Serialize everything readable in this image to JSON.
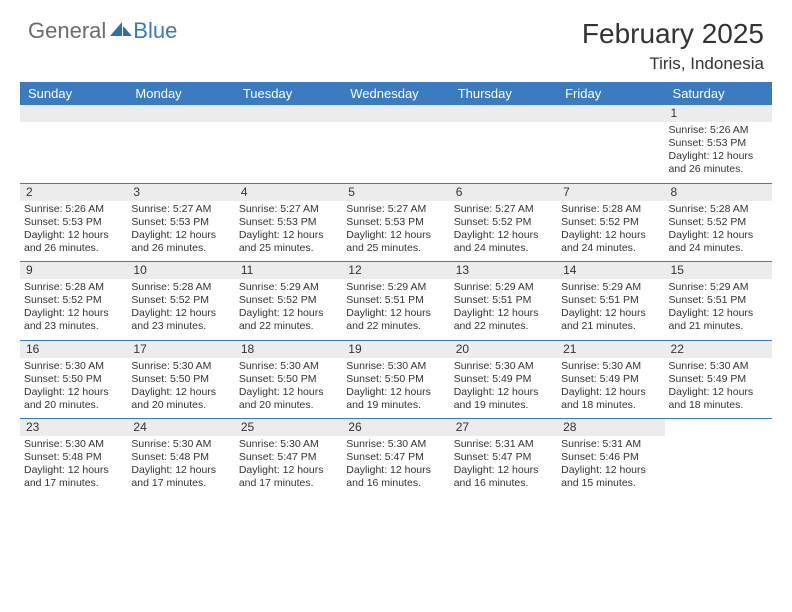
{
  "brand": {
    "general": "General",
    "blue": "Blue"
  },
  "title": "February 2025",
  "location": "Tiris, Indonesia",
  "colors": {
    "header_bg": "#3b7bbf",
    "header_text": "#ffffff",
    "daynum_bg": "#ececec",
    "border": "#3b7bbf",
    "logo_grey": "#6b6b6b",
    "logo_blue": "#3a7ab8",
    "text": "#333333",
    "background": "#ffffff"
  },
  "dayheaders": [
    "Sunday",
    "Monday",
    "Tuesday",
    "Wednesday",
    "Thursday",
    "Friday",
    "Saturday"
  ],
  "weeks": [
    [
      {
        "empty": true
      },
      {
        "empty": true
      },
      {
        "empty": true
      },
      {
        "empty": true
      },
      {
        "empty": true
      },
      {
        "empty": true
      },
      {
        "day": "1",
        "sunrise": "Sunrise: 5:26 AM",
        "sunset": "Sunset: 5:53 PM",
        "daylight1": "Daylight: 12 hours",
        "daylight2": "and 26 minutes."
      }
    ],
    [
      {
        "day": "2",
        "sunrise": "Sunrise: 5:26 AM",
        "sunset": "Sunset: 5:53 PM",
        "daylight1": "Daylight: 12 hours",
        "daylight2": "and 26 minutes."
      },
      {
        "day": "3",
        "sunrise": "Sunrise: 5:27 AM",
        "sunset": "Sunset: 5:53 PM",
        "daylight1": "Daylight: 12 hours",
        "daylight2": "and 26 minutes."
      },
      {
        "day": "4",
        "sunrise": "Sunrise: 5:27 AM",
        "sunset": "Sunset: 5:53 PM",
        "daylight1": "Daylight: 12 hours",
        "daylight2": "and 25 minutes."
      },
      {
        "day": "5",
        "sunrise": "Sunrise: 5:27 AM",
        "sunset": "Sunset: 5:53 PM",
        "daylight1": "Daylight: 12 hours",
        "daylight2": "and 25 minutes."
      },
      {
        "day": "6",
        "sunrise": "Sunrise: 5:27 AM",
        "sunset": "Sunset: 5:52 PM",
        "daylight1": "Daylight: 12 hours",
        "daylight2": "and 24 minutes."
      },
      {
        "day": "7",
        "sunrise": "Sunrise: 5:28 AM",
        "sunset": "Sunset: 5:52 PM",
        "daylight1": "Daylight: 12 hours",
        "daylight2": "and 24 minutes."
      },
      {
        "day": "8",
        "sunrise": "Sunrise: 5:28 AM",
        "sunset": "Sunset: 5:52 PM",
        "daylight1": "Daylight: 12 hours",
        "daylight2": "and 24 minutes."
      }
    ],
    [
      {
        "day": "9",
        "sunrise": "Sunrise: 5:28 AM",
        "sunset": "Sunset: 5:52 PM",
        "daylight1": "Daylight: 12 hours",
        "daylight2": "and 23 minutes."
      },
      {
        "day": "10",
        "sunrise": "Sunrise: 5:28 AM",
        "sunset": "Sunset: 5:52 PM",
        "daylight1": "Daylight: 12 hours",
        "daylight2": "and 23 minutes."
      },
      {
        "day": "11",
        "sunrise": "Sunrise: 5:29 AM",
        "sunset": "Sunset: 5:52 PM",
        "daylight1": "Daylight: 12 hours",
        "daylight2": "and 22 minutes."
      },
      {
        "day": "12",
        "sunrise": "Sunrise: 5:29 AM",
        "sunset": "Sunset: 5:51 PM",
        "daylight1": "Daylight: 12 hours",
        "daylight2": "and 22 minutes."
      },
      {
        "day": "13",
        "sunrise": "Sunrise: 5:29 AM",
        "sunset": "Sunset: 5:51 PM",
        "daylight1": "Daylight: 12 hours",
        "daylight2": "and 22 minutes."
      },
      {
        "day": "14",
        "sunrise": "Sunrise: 5:29 AM",
        "sunset": "Sunset: 5:51 PM",
        "daylight1": "Daylight: 12 hours",
        "daylight2": "and 21 minutes."
      },
      {
        "day": "15",
        "sunrise": "Sunrise: 5:29 AM",
        "sunset": "Sunset: 5:51 PM",
        "daylight1": "Daylight: 12 hours",
        "daylight2": "and 21 minutes."
      }
    ],
    [
      {
        "day": "16",
        "sunrise": "Sunrise: 5:30 AM",
        "sunset": "Sunset: 5:50 PM",
        "daylight1": "Daylight: 12 hours",
        "daylight2": "and 20 minutes."
      },
      {
        "day": "17",
        "sunrise": "Sunrise: 5:30 AM",
        "sunset": "Sunset: 5:50 PM",
        "daylight1": "Daylight: 12 hours",
        "daylight2": "and 20 minutes."
      },
      {
        "day": "18",
        "sunrise": "Sunrise: 5:30 AM",
        "sunset": "Sunset: 5:50 PM",
        "daylight1": "Daylight: 12 hours",
        "daylight2": "and 20 minutes."
      },
      {
        "day": "19",
        "sunrise": "Sunrise: 5:30 AM",
        "sunset": "Sunset: 5:50 PM",
        "daylight1": "Daylight: 12 hours",
        "daylight2": "and 19 minutes."
      },
      {
        "day": "20",
        "sunrise": "Sunrise: 5:30 AM",
        "sunset": "Sunset: 5:49 PM",
        "daylight1": "Daylight: 12 hours",
        "daylight2": "and 19 minutes."
      },
      {
        "day": "21",
        "sunrise": "Sunrise: 5:30 AM",
        "sunset": "Sunset: 5:49 PM",
        "daylight1": "Daylight: 12 hours",
        "daylight2": "and 18 minutes."
      },
      {
        "day": "22",
        "sunrise": "Sunrise: 5:30 AM",
        "sunset": "Sunset: 5:49 PM",
        "daylight1": "Daylight: 12 hours",
        "daylight2": "and 18 minutes."
      }
    ],
    [
      {
        "day": "23",
        "sunrise": "Sunrise: 5:30 AM",
        "sunset": "Sunset: 5:48 PM",
        "daylight1": "Daylight: 12 hours",
        "daylight2": "and 17 minutes."
      },
      {
        "day": "24",
        "sunrise": "Sunrise: 5:30 AM",
        "sunset": "Sunset: 5:48 PM",
        "daylight1": "Daylight: 12 hours",
        "daylight2": "and 17 minutes."
      },
      {
        "day": "25",
        "sunrise": "Sunrise: 5:30 AM",
        "sunset": "Sunset: 5:47 PM",
        "daylight1": "Daylight: 12 hours",
        "daylight2": "and 17 minutes."
      },
      {
        "day": "26",
        "sunrise": "Sunrise: 5:30 AM",
        "sunset": "Sunset: 5:47 PM",
        "daylight1": "Daylight: 12 hours",
        "daylight2": "and 16 minutes."
      },
      {
        "day": "27",
        "sunrise": "Sunrise: 5:31 AM",
        "sunset": "Sunset: 5:47 PM",
        "daylight1": "Daylight: 12 hours",
        "daylight2": "and 16 minutes."
      },
      {
        "day": "28",
        "sunrise": "Sunrise: 5:31 AM",
        "sunset": "Sunset: 5:46 PM",
        "daylight1": "Daylight: 12 hours",
        "daylight2": "and 15 minutes."
      },
      {
        "empty": true,
        "nobar": true
      }
    ]
  ]
}
